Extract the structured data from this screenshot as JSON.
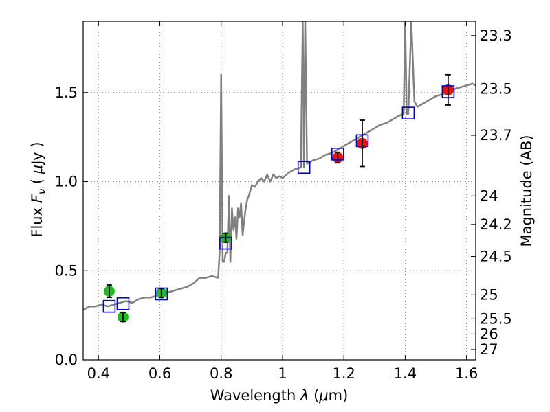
{
  "chart_data": {
    "type": "scatter",
    "xlabel": "Wavelength  λ (μm)",
    "ylabel": "Flux  F_ν ( μJy )",
    "ylabel_parts": {
      "pre": "Flux  ",
      "var": "F",
      "sub": "ν",
      "post": " ( ",
      "mu": "μ",
      "unit": "Jy )"
    },
    "xlabel_parts": {
      "pre": "Wavelength  ",
      "var": "λ",
      "post": " (",
      "mu": "μ",
      "unit": "m)"
    },
    "y2label": "Magnitude (AB)",
    "xlim": [
      0.35,
      1.63
    ],
    "ylim": [
      0.0,
      1.9
    ],
    "grid": true,
    "x_ticks": [
      0.4,
      0.6,
      0.8,
      1.0,
      1.2,
      1.4,
      1.6
    ],
    "x_tick_labels": [
      "0.4",
      "0.6",
      "0.8",
      "1",
      "1.2",
      "1.4",
      "1.6"
    ],
    "y_ticks": [
      0.0,
      0.5,
      1.0,
      1.5
    ],
    "y_tick_labels": [
      "0.0",
      "0.5",
      "1.0",
      "1.5"
    ],
    "y2_ticks": [
      {
        "mag": "23.3",
        "flux": 1.82
      },
      {
        "mag": "23.5",
        "flux": 1.52
      },
      {
        "mag": "23.7",
        "flux": 1.26
      },
      {
        "mag": "24",
        "flux": 0.92
      },
      {
        "mag": "24.2",
        "flux": 0.76
      },
      {
        "mag": "24.5",
        "flux": 0.58
      },
      {
        "mag": "25",
        "flux": 0.365
      },
      {
        "mag": "25.5",
        "flux": 0.23
      },
      {
        "mag": "26",
        "flux": 0.145
      },
      {
        "mag": "27",
        "flux": 0.058
      }
    ],
    "colors": {
      "model": "#808080",
      "green": "#22bb22",
      "red": "#ee1111",
      "box": "#0000cc",
      "error": "#000000",
      "grid": "#8c8c8c"
    },
    "model_spectrum": {
      "x": [
        0.35,
        0.37,
        0.39,
        0.41,
        0.43,
        0.45,
        0.47,
        0.49,
        0.51,
        0.53,
        0.55,
        0.57,
        0.59,
        0.61,
        0.63,
        0.65,
        0.67,
        0.69,
        0.71,
        0.73,
        0.75,
        0.77,
        0.79,
        0.795,
        0.8,
        0.805,
        0.81,
        0.815,
        0.82,
        0.825,
        0.83,
        0.835,
        0.84,
        0.845,
        0.85,
        0.855,
        0.86,
        0.865,
        0.87,
        0.875,
        0.88,
        0.885,
        0.89,
        0.895,
        0.9,
        0.91,
        0.92,
        0.93,
        0.94,
        0.95,
        0.96,
        0.97,
        0.98,
        0.99,
        1.0,
        1.02,
        1.04,
        1.06,
        1.066,
        1.07,
        1.074,
        1.08,
        1.1,
        1.12,
        1.14,
        1.16,
        1.18,
        1.2,
        1.22,
        1.24,
        1.26,
        1.28,
        1.3,
        1.32,
        1.34,
        1.36,
        1.38,
        1.395,
        1.4,
        1.405,
        1.41,
        1.42,
        1.43,
        1.44,
        1.46,
        1.48,
        1.5,
        1.52,
        1.54,
        1.56,
        1.58,
        1.6,
        1.62,
        1.63
      ],
      "y": [
        0.28,
        0.3,
        0.3,
        0.31,
        0.3,
        0.31,
        0.32,
        0.33,
        0.32,
        0.34,
        0.35,
        0.35,
        0.36,
        0.37,
        0.38,
        0.39,
        0.4,
        0.41,
        0.43,
        0.46,
        0.46,
        0.47,
        0.46,
        0.6,
        1.6,
        0.55,
        0.55,
        0.6,
        0.6,
        0.92,
        0.55,
        0.85,
        0.73,
        0.8,
        0.68,
        0.85,
        0.8,
        0.88,
        0.7,
        0.78,
        0.85,
        0.9,
        0.92,
        0.95,
        0.98,
        0.97,
        1.0,
        1.02,
        1.0,
        1.04,
        1.0,
        1.04,
        1.02,
        1.03,
        1.02,
        1.05,
        1.07,
        1.08,
        1.9,
        1.08,
        1.9,
        1.1,
        1.12,
        1.13,
        1.15,
        1.16,
        1.18,
        1.2,
        1.22,
        1.24,
        1.26,
        1.28,
        1.3,
        1.32,
        1.33,
        1.35,
        1.37,
        1.38,
        1.9,
        1.38,
        1.38,
        1.9,
        1.45,
        1.42,
        1.44,
        1.46,
        1.48,
        1.49,
        1.5,
        1.52,
        1.53,
        1.54,
        1.55,
        1.54
      ]
    },
    "series": [
      {
        "marker": "circle",
        "color": "#22bb22",
        "points": [
          {
            "x": 0.435,
            "y": 0.385,
            "err": 0.035
          },
          {
            "x": 0.48,
            "y": 0.24,
            "err": 0.025
          },
          {
            "x": 0.605,
            "y": 0.375,
            "err": 0.025
          },
          {
            "x": 0.815,
            "y": 0.685,
            "err": 0.025
          }
        ]
      },
      {
        "marker": "circle",
        "color": "#ee1111",
        "points": [
          {
            "x": 1.18,
            "y": 1.135,
            "err": 0.03
          },
          {
            "x": 1.26,
            "y": 1.215,
            "err": 0.13
          },
          {
            "x": 1.54,
            "y": 1.515,
            "err": 0.085
          }
        ]
      },
      {
        "marker": "square",
        "color": "#0000cc",
        "points": [
          {
            "x": 0.435,
            "y": 0.3
          },
          {
            "x": 0.48,
            "y": 0.315
          },
          {
            "x": 0.605,
            "y": 0.37
          },
          {
            "x": 0.815,
            "y": 0.655
          },
          {
            "x": 1.07,
            "y": 1.08
          },
          {
            "x": 1.18,
            "y": 1.155
          },
          {
            "x": 1.26,
            "y": 1.23
          },
          {
            "x": 1.41,
            "y": 1.385
          },
          {
            "x": 1.54,
            "y": 1.505
          }
        ]
      }
    ]
  }
}
